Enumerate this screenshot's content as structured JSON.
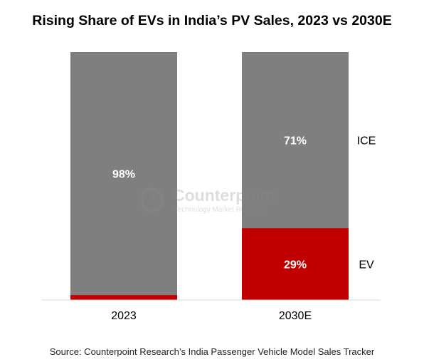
{
  "chart_data": {
    "type": "bar",
    "stacked": true,
    "percent": true,
    "title": "Rising Share of EVs in India’s PV Sales, 2023 vs 2030E",
    "categories": [
      "2023",
      "2030E"
    ],
    "series": [
      {
        "name": "EV",
        "values": [
          2,
          29
        ],
        "labels": [
          "",
          "29%"
        ],
        "color": "#C00000"
      },
      {
        "name": "ICE",
        "values": [
          98,
          71
        ],
        "labels": [
          "98%",
          "71%"
        ],
        "color": "#7F7F7F"
      }
    ],
    "ylim": [
      0,
      100
    ],
    "grid": false,
    "legend": "right, inline labels"
  },
  "watermark": {
    "name": "Counterpoint",
    "tagline": "Technology Market Research"
  },
  "source": "Source: Counterpoint Research’s India Passenger Vehicle Model Sales Tracker"
}
